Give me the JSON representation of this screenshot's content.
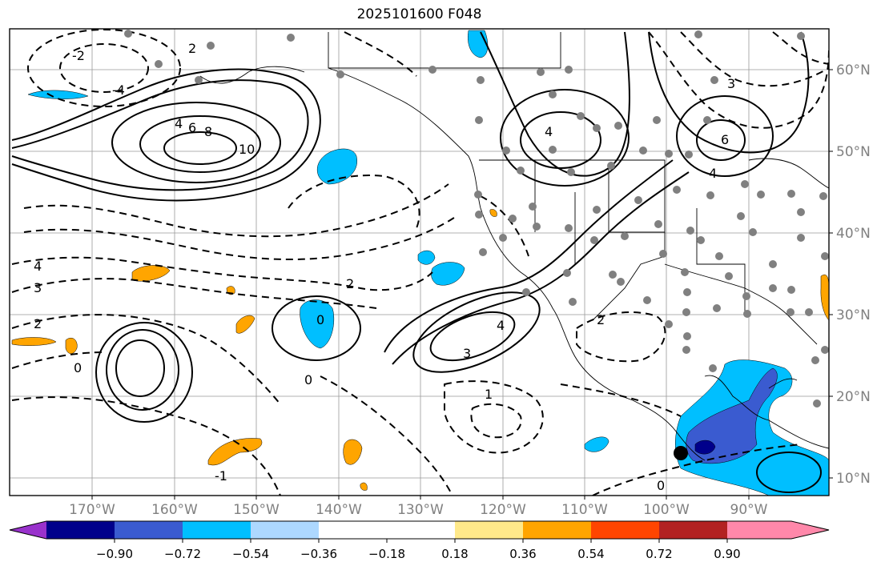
{
  "title": "2025101600 F048",
  "lon_labels": [
    "170°W",
    "160°W",
    "150°W",
    "140°W",
    "130°W",
    "120°W",
    "110°W",
    "100°W",
    "90°W"
  ],
  "lat_labels": [
    "60°N",
    "50°N",
    "40°N",
    "30°N",
    "20°N",
    "10°N"
  ],
  "colorbar": {
    "ticks": [
      "−0.90",
      "−0.72",
      "−0.54",
      "−0.36",
      "−0.18",
      "0.18",
      "0.36",
      "0.54",
      "0.72",
      "0.90"
    ],
    "colors": [
      "#9932cc",
      "#00008b",
      "#3a5bd0",
      "#00bfff",
      "#add8ff",
      "#ffffff",
      "#ffe98a",
      "#ffa500",
      "#ff4500",
      "#b22222",
      "#ff88aa"
    ]
  },
  "contour_labels": [
    "2",
    "4",
    "6",
    "8",
    "10",
    "0",
    "-2",
    "-4",
    "1",
    "3",
    "4",
    "2",
    "0",
    "-1"
  ]
}
